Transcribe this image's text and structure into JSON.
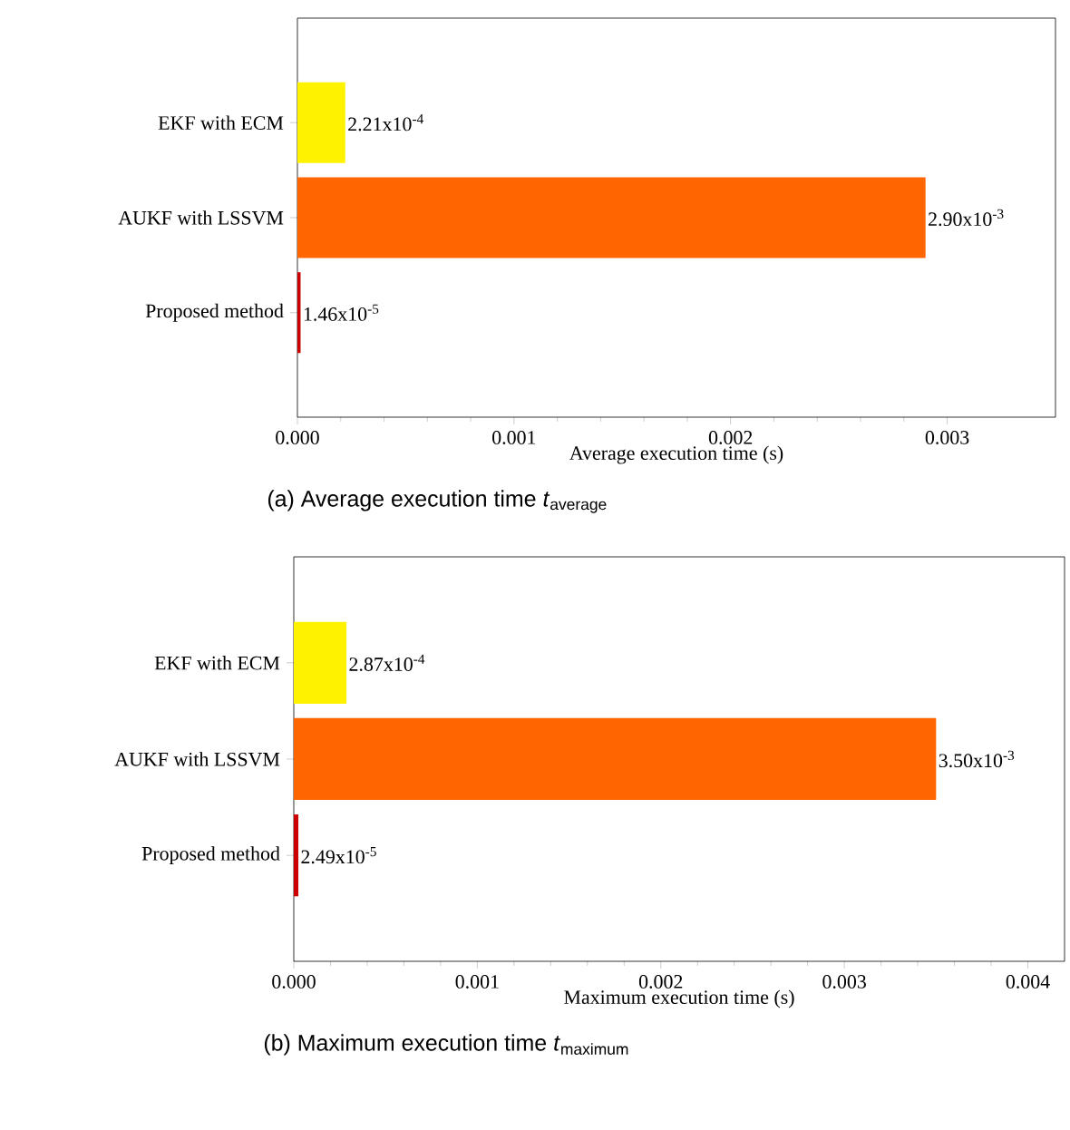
{
  "chart_data": [
    {
      "type": "bar",
      "orientation": "horizontal",
      "title": "(a) Average execution time *t*$_{average}$",
      "xlabel": "Average execution time (s)",
      "categories": [
        "EKF with ECM",
        "AUKF with LSSVM",
        "Proposed method"
      ],
      "values": [
        0.000221,
        0.0029,
        1.46e-05
      ],
      "colors": [
        "#fff200",
        "#ff6600",
        "#cc0000"
      ],
      "value_labels": [
        "2.21x10$^{-4}$",
        "2.90x10$^{-3}$",
        "1.46x10$^{-5}$"
      ],
      "xlim": [
        0,
        0.0035
      ],
      "xticks": [
        {
          "value": 0,
          "label": "0.000"
        },
        {
          "value": 0.001,
          "label": "0.001"
        },
        {
          "value": 0.002,
          "label": "0.002"
        },
        {
          "value": 0.003,
          "label": "0.003"
        }
      ]
    },
    {
      "type": "bar",
      "orientation": "horizontal",
      "title": "(b) Maximum execution time *t*$_{maximum}$",
      "xlabel": "Maximum execution time (s)",
      "categories": [
        "EKF with ECM",
        "AUKF with LSSVM",
        "Proposed method"
      ],
      "values": [
        0.000287,
        0.0035,
        2.49e-05
      ],
      "colors": [
        "#fff200",
        "#ff6600",
        "#cc0000"
      ],
      "value_labels": [
        "2.87x10$^{-4}$",
        "3.50x10$^{-3}$",
        "2.49x10$^{-5}$"
      ],
      "xlim": [
        0,
        0.0042
      ],
      "xticks": [
        {
          "value": 0,
          "label": "0.000"
        },
        {
          "value": 0.001,
          "label": "0.001"
        },
        {
          "value": 0.002,
          "label": "0.002"
        },
        {
          "value": 0.003,
          "label": "0.003"
        },
        {
          "value": 0.004,
          "label": "0.004"
        }
      ]
    }
  ]
}
